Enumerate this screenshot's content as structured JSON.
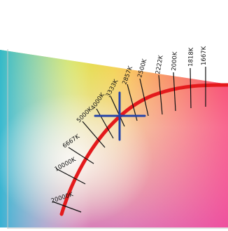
{
  "diagram": {
    "colors": {
      "locus": "#e41a1c",
      "crosshair": "#2343a8",
      "tick": "#111111",
      "frame": "#c9c9c9",
      "page": "#ffffff"
    },
    "cct_labels": [
      "1667K",
      "1818K",
      "2000K",
      "2222K",
      "2500K",
      "2857K",
      "3333K",
      "4000K",
      "5000K",
      "6667K",
      "10000K",
      "20000K"
    ],
    "crosshair_marker": "crosshair"
  }
}
